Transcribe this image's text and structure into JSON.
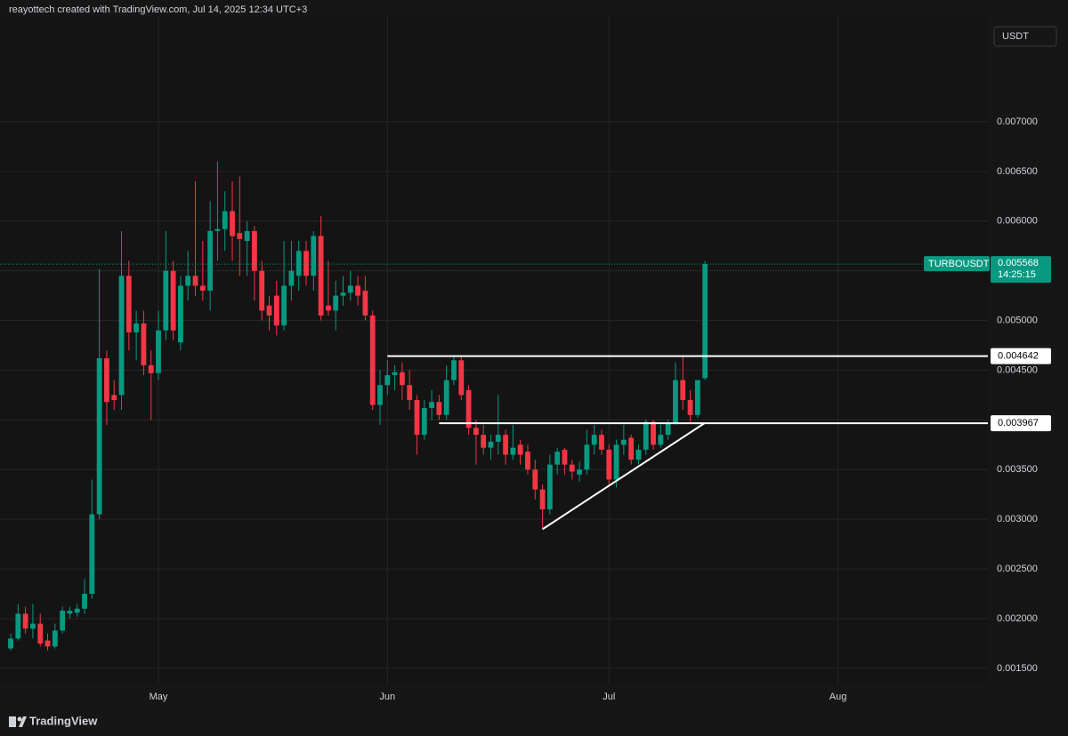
{
  "header": "reayottech created with TradingView.com, Jul 14, 2025 12:34 UTC+3",
  "brand": "TradingView",
  "chart_data": {
    "type": "candlestick",
    "currency": "USDT",
    "up_color": "#089981",
    "down_color": "#f23645",
    "grid": true,
    "xlim": [
      -1.45,
      132.3
    ],
    "xticks": [
      {
        "value": 20,
        "label": "May"
      },
      {
        "value": 51,
        "label": "Jun"
      },
      {
        "value": 81,
        "label": "Jul"
      },
      {
        "value": 112,
        "label": "Aug"
      }
    ],
    "ylim": [
      0.001338,
      0.008064
    ],
    "yticks": [
      {
        "value": 0.0015,
        "label": "0.001500"
      },
      {
        "value": 0.002,
        "label": "0.002000"
      },
      {
        "value": 0.0025,
        "label": "0.002500"
      },
      {
        "value": 0.003,
        "label": "0.003000"
      },
      {
        "value": 0.0035,
        "label": "0.003500"
      },
      {
        "value": 0.004,
        "label": "0.004000"
      },
      {
        "value": 0.0045,
        "label": "0.004500"
      },
      {
        "value": 0.005,
        "label": "0.005000"
      },
      {
        "value": 0.0055,
        "label": "0.005500"
      },
      {
        "value": 0.006,
        "label": "0.006000"
      },
      {
        "value": 0.0065,
        "label": "0.006500"
      },
      {
        "value": 0.007,
        "label": "0.007000"
      }
    ],
    "open": [
      0.0017,
      0.0018,
      0.00205,
      0.0019,
      0.00195,
      0.00178,
      0.00172,
      0.00188,
      0.00205,
      0.00206,
      0.0021,
      0.00225,
      0.00305,
      0.00462,
      0.00425,
      0.00425,
      0.00545,
      0.00488,
      0.00497,
      0.00455,
      0.00447,
      0.0049,
      0.0055,
      0.00478,
      0.00535,
      0.00545,
      0.00535,
      0.0053,
      0.0059,
      0.00592,
      0.0061,
      0.00588,
      0.0058,
      0.0059,
      0.0055,
      0.00515,
      0.00525,
      0.00495,
      0.00535,
      0.00545,
      0.0057,
      0.00545,
      0.00585,
      0.00515,
      0.0051,
      0.00525,
      0.00528,
      0.00535,
      0.0053,
      0.00505,
      0.00415,
      0.00435,
      0.00445,
      0.00448,
      0.00435,
      0.0042,
      0.00385,
      0.00412,
      0.00418,
      0.00405,
      0.0044,
      0.0046,
      0.0043,
      0.00392,
      0.00385,
      0.00372,
      0.00378,
      0.00385,
      0.00365,
      0.00375,
      0.00368,
      0.0035,
      0.0033,
      0.0031,
      0.00355,
      0.0037,
      0.00355,
      0.00345,
      0.0035,
      0.00375,
      0.00385,
      0.0037,
      0.0034,
      0.00375,
      0.00382,
      0.0036,
      0.0037,
      0.00398,
      0.00375,
      0.00385,
      0.00397,
      0.0044,
      0.0042,
      0.00405,
      0.00442
    ],
    "high": [
      0.00185,
      0.00215,
      0.00212,
      0.00215,
      0.00205,
      0.00185,
      0.00195,
      0.00212,
      0.00212,
      0.00215,
      0.0024,
      0.0034,
      0.00552,
      0.0047,
      0.0044,
      0.0059,
      0.0056,
      0.0051,
      0.0051,
      0.0047,
      0.0051,
      0.0059,
      0.0056,
      0.00545,
      0.0057,
      0.0064,
      0.0058,
      0.0062,
      0.0066,
      0.0063,
      0.0064,
      0.00645,
      0.006,
      0.00595,
      0.0056,
      0.00525,
      0.0054,
      0.0058,
      0.0058,
      0.0058,
      0.0058,
      0.0059,
      0.00605,
      0.0056,
      0.0054,
      0.00545,
      0.0055,
      0.00545,
      0.00545,
      0.0051,
      0.0045,
      0.0046,
      0.00455,
      0.00458,
      0.0045,
      0.00425,
      0.0042,
      0.0043,
      0.00425,
      0.00455,
      0.00465,
      0.00465,
      0.00435,
      0.004,
      0.00395,
      0.00385,
      0.00425,
      0.0039,
      0.00395,
      0.0038,
      0.00375,
      0.0036,
      0.00335,
      0.00365,
      0.00372,
      0.00372,
      0.0036,
      0.00358,
      0.0039,
      0.00395,
      0.0039,
      0.00375,
      0.0038,
      0.00395,
      0.00385,
      0.00375,
      0.004,
      0.004,
      0.00395,
      0.004,
      0.00458,
      0.00465,
      0.0043,
      0.0044,
      0.0056
    ],
    "low": [
      0.00168,
      0.00178,
      0.00185,
      0.0018,
      0.00172,
      0.00168,
      0.0017,
      0.00185,
      0.002,
      0.00202,
      0.00205,
      0.0022,
      0.003,
      0.00395,
      0.0041,
      0.0041,
      0.0047,
      0.0046,
      0.00445,
      0.004,
      0.0044,
      0.0048,
      0.0048,
      0.0047,
      0.0052,
      0.00525,
      0.0052,
      0.0051,
      0.0056,
      0.0057,
      0.0056,
      0.00545,
      0.00545,
      0.0052,
      0.005,
      0.0049,
      0.00485,
      0.0049,
      0.0052,
      0.0053,
      0.00535,
      0.0053,
      0.005,
      0.00505,
      0.0049,
      0.00515,
      0.0052,
      0.00515,
      0.005,
      0.0041,
      0.00395,
      0.00425,
      0.0043,
      0.0042,
      0.0041,
      0.00365,
      0.0038,
      0.004,
      0.004,
      0.004,
      0.00435,
      0.0042,
      0.00385,
      0.00355,
      0.00365,
      0.0036,
      0.00365,
      0.00355,
      0.0036,
      0.00355,
      0.00345,
      0.0032,
      0.0029,
      0.00305,
      0.00345,
      0.00345,
      0.0034,
      0.00338,
      0.00345,
      0.00365,
      0.00365,
      0.00335,
      0.00332,
      0.00365,
      0.00355,
      0.00355,
      0.00365,
      0.0037,
      0.00372,
      0.0038,
      0.00395,
      0.0041,
      0.00398,
      0.00402,
      0.0044
    ],
    "close": [
      0.0018,
      0.00205,
      0.0019,
      0.00195,
      0.00175,
      0.00172,
      0.00188,
      0.00208,
      0.00208,
      0.0021,
      0.00225,
      0.00305,
      0.00462,
      0.00418,
      0.0042,
      0.00545,
      0.00488,
      0.00497,
      0.00455,
      0.00447,
      0.0049,
      0.0055,
      0.0049,
      0.00535,
      0.00545,
      0.00535,
      0.0053,
      0.0059,
      0.00592,
      0.0061,
      0.00585,
      0.00582,
      0.0059,
      0.0055,
      0.0051,
      0.00505,
      0.00495,
      0.00535,
      0.0055,
      0.0057,
      0.00545,
      0.00585,
      0.00505,
      0.0051,
      0.00525,
      0.00528,
      0.00535,
      0.00525,
      0.00505,
      0.00415,
      0.00435,
      0.00445,
      0.00448,
      0.00435,
      0.0042,
      0.00385,
      0.00412,
      0.00418,
      0.00405,
      0.0044,
      0.0046,
      0.00425,
      0.00392,
      0.00385,
      0.00372,
      0.00378,
      0.00385,
      0.00365,
      0.00372,
      0.00365,
      0.0035,
      0.0033,
      0.0031,
      0.00355,
      0.00368,
      0.00355,
      0.00348,
      0.0035,
      0.00375,
      0.00385,
      0.0037,
      0.0034,
      0.00375,
      0.0038,
      0.0036,
      0.0037,
      0.00398,
      0.00375,
      0.00385,
      0.00397,
      0.0044,
      0.0042,
      0.00405,
      0.0044,
      0.005568
    ],
    "levels": [
      {
        "value": 0.004642,
        "from": 51
      },
      {
        "value": 0.003967,
        "from": 58
      }
    ],
    "trendline": {
      "from": {
        "x": 72,
        "y": 0.0029
      },
      "to": {
        "x": 94,
        "y": 0.00397
      }
    },
    "last_price": {
      "symbol": "TURBOUSDT",
      "value": 0.005568,
      "countdown": "14:25:15"
    }
  }
}
